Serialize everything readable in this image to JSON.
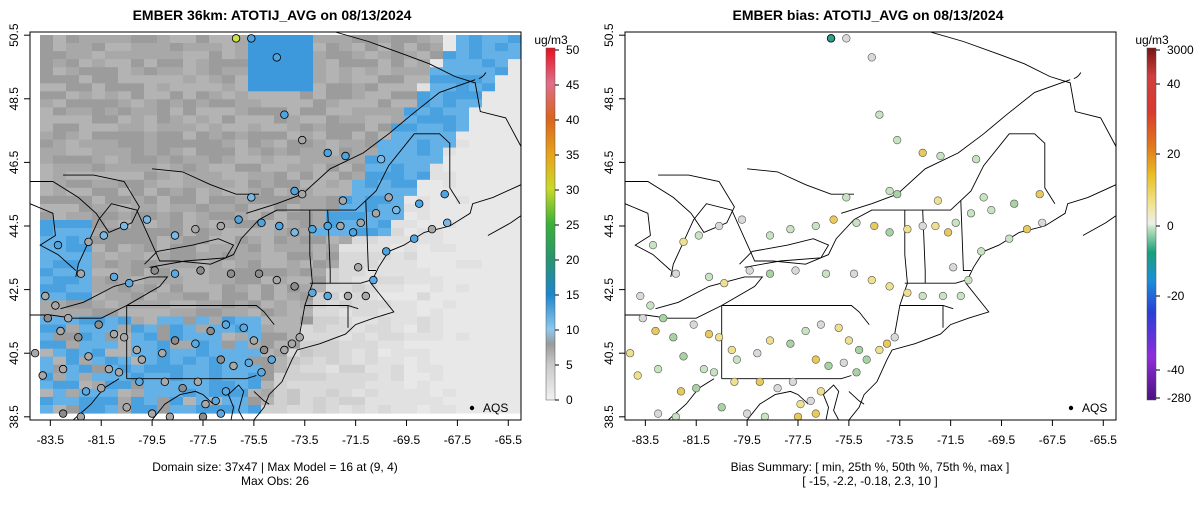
{
  "chart_data": [
    {
      "type": "heatmap",
      "title": "EMBER 36km: ATOTIJ_AVG on 08/13/2024",
      "x_ticks": [
        "-83.5",
        "-81.5",
        "-79.5",
        "-77.5",
        "-75.5",
        "-73.5",
        "-71.5",
        "-69.5",
        "-67.5",
        "-65.5"
      ],
      "y_ticks": [
        "38.5",
        "40.5",
        "42.5",
        "44.5",
        "46.5",
        "48.5",
        "50.5"
      ],
      "xlim": [
        -84.3,
        -65.0
      ],
      "ylim": [
        38.4,
        50.6
      ],
      "colorbar": {
        "unit": "ug/m3",
        "ticks": [
          "0",
          "5",
          "10",
          "15",
          "20",
          "25",
          "30",
          "35",
          "40",
          "45",
          "50"
        ],
        "range": [
          0,
          50
        ]
      },
      "legend": {
        "label": "AQS",
        "position": "bottom-right"
      },
      "footer_line1": "Domain size: 37x47 | Max Model = 16 at (9, 4)",
      "footer_line2": "Max Obs: 26",
      "max_model": 16,
      "max_obs": 26
    },
    {
      "type": "scatter",
      "title": "EMBER bias: ATOTIJ_AVG on 08/13/2024",
      "x_ticks": [
        "-83.5",
        "-81.5",
        "-79.5",
        "-77.5",
        "-75.5",
        "-73.5",
        "-71.5",
        "-69.5",
        "-67.5",
        "-65.5"
      ],
      "y_ticks": [
        "38.5",
        "40.5",
        "42.5",
        "44.5",
        "46.5",
        "48.5",
        "50.5"
      ],
      "xlim": [
        -84.3,
        -65.0
      ],
      "ylim": [
        38.4,
        50.6
      ],
      "colorbar": {
        "unit": "ug/m3",
        "ticks": [
          "3000",
          "40",
          "20",
          "0",
          "-20",
          "-40",
          "-280"
        ],
        "range": [
          -280,
          3000
        ]
      },
      "legend": {
        "label": "AQS",
        "position": "bottom-right"
      },
      "footer_line1": "Bias Summary: [ min, 25th %, 50th %, 75th %, max ]",
      "footer_line2": "[ -15,   -2.2,   -0.18,   2.3,   10 ]",
      "bias_summary": {
        "min": -15,
        "p25": -2.2,
        "p50": -0.18,
        "p75": 2.3,
        "max": 10
      }
    }
  ]
}
